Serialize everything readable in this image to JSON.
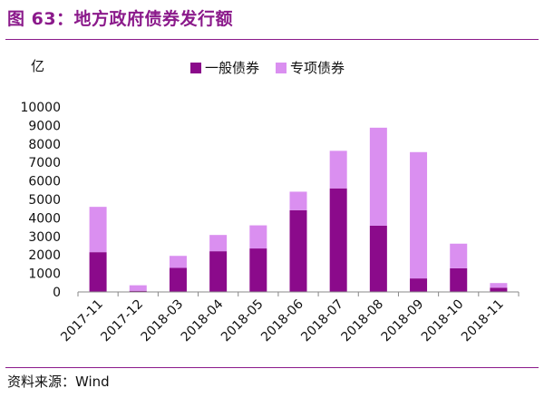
{
  "title": "图 63：地方政府债券发行额",
  "unit_label": "亿",
  "source": "资料来源：Wind",
  "colors": {
    "general": "#8B0A8B",
    "special": "#DA8FF0",
    "accent": "#8B1A8B"
  },
  "chart_data": {
    "type": "bar",
    "stacked": true,
    "categories": [
      "2017-11",
      "2017-12",
      "2018-03",
      "2018-04",
      "2018-05",
      "2018-06",
      "2018-07",
      "2018-08",
      "2018-09",
      "2018-10",
      "2018-11"
    ],
    "series": [
      {
        "name": "一般债券",
        "values": [
          2150,
          60,
          1300,
          2200,
          2350,
          4420,
          5600,
          3580,
          730,
          1280,
          230
        ]
      },
      {
        "name": "专项债券",
        "values": [
          2450,
          300,
          650,
          880,
          1250,
          1000,
          2030,
          5300,
          6830,
          1330,
          250
        ]
      }
    ],
    "yticks": [
      "0",
      "1000",
      "2000",
      "3000",
      "4000",
      "5000",
      "6000",
      "7000",
      "8000",
      "9000",
      "10000"
    ],
    "ylim": [
      0,
      10000
    ],
    "grid": false,
    "legend_position": "top-center"
  }
}
